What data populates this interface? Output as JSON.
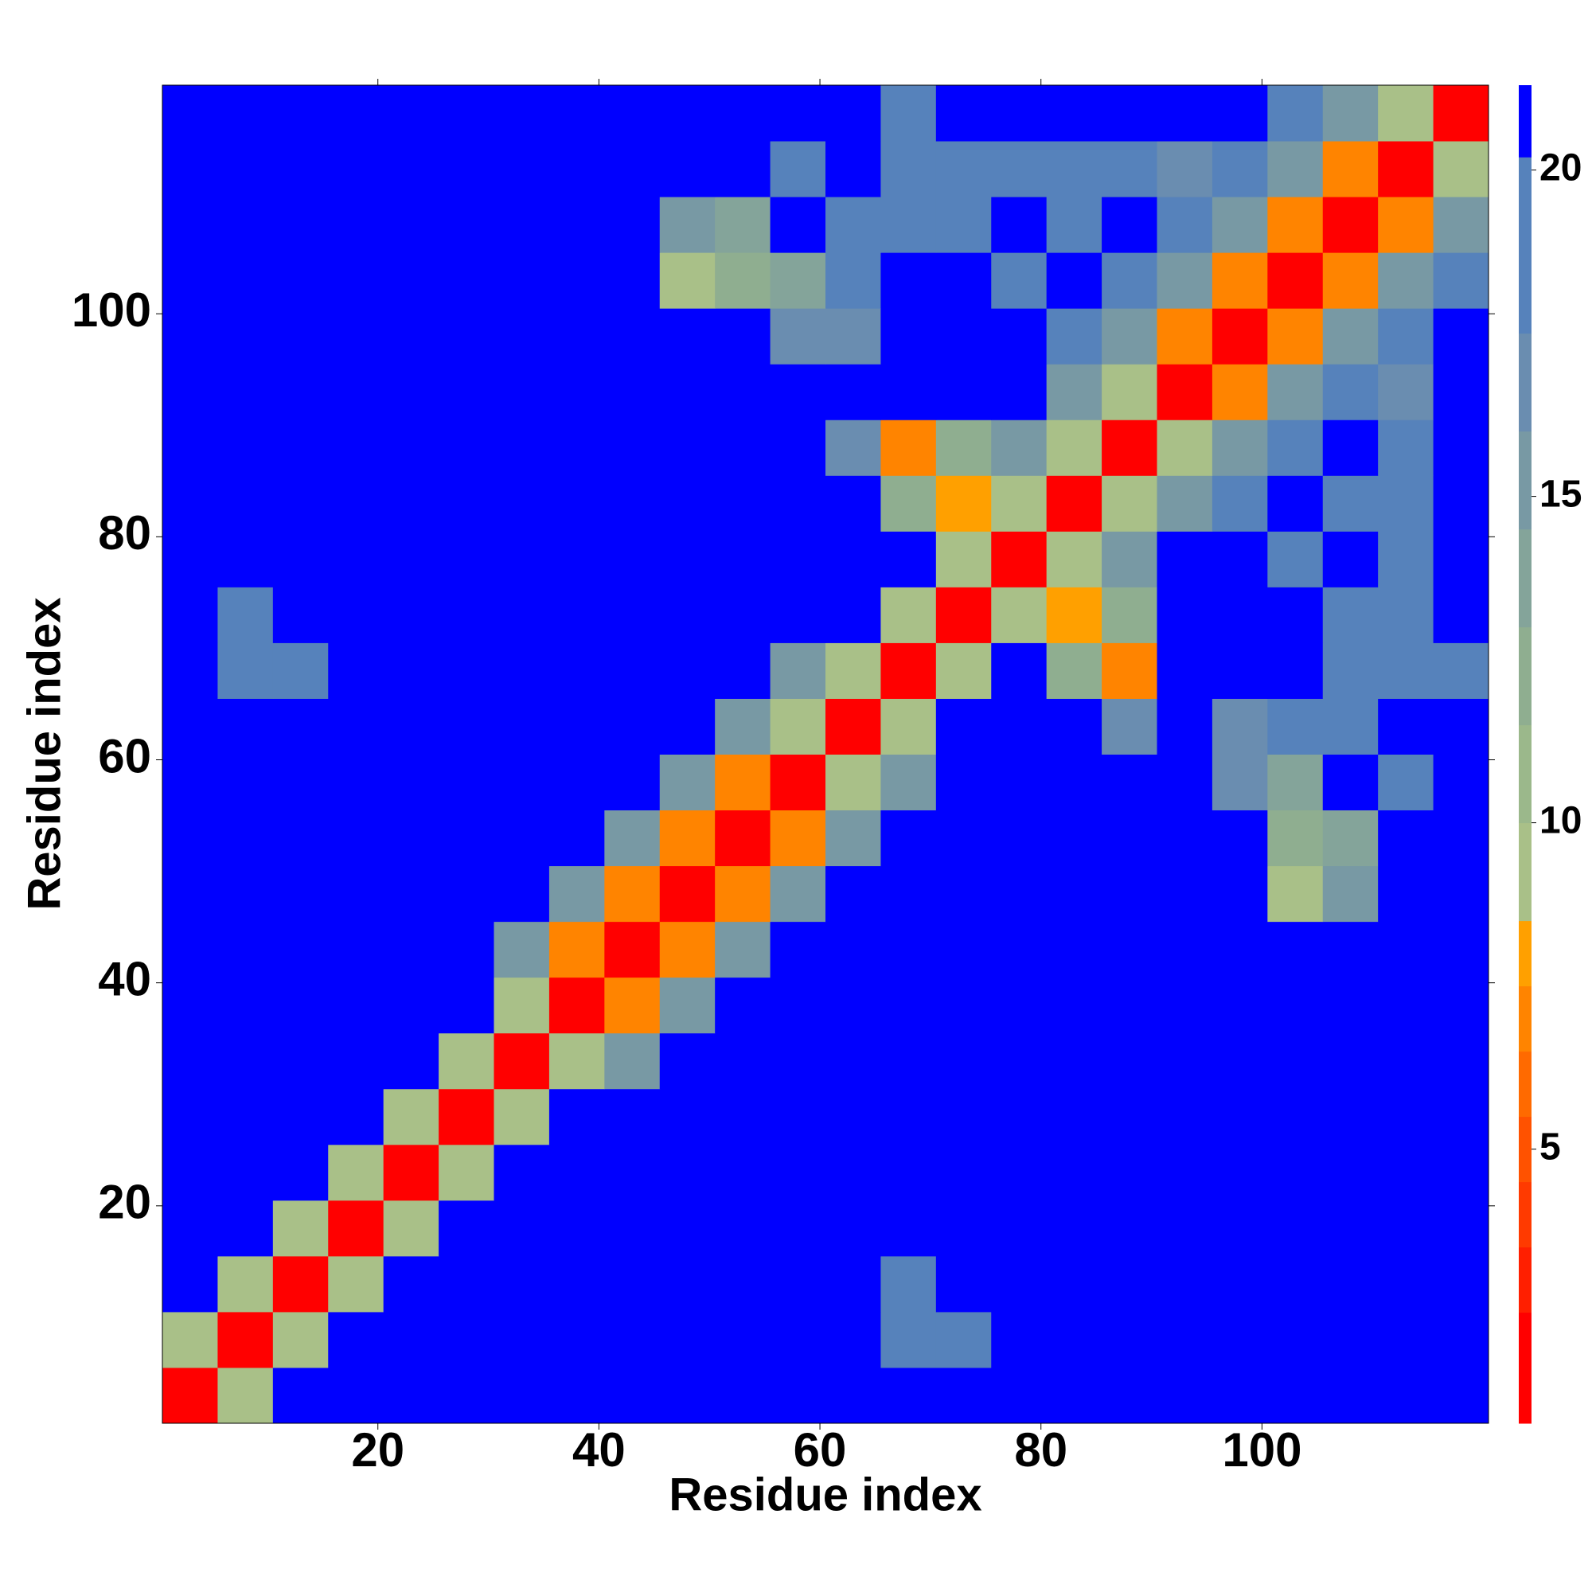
{
  "chart_data": {
    "type": "heatmap",
    "xlabel": "Residue index",
    "ylabel": "Residue index",
    "xbins": [
      0.5,
      5.5,
      10.5,
      15.5,
      20.5,
      25.5,
      30.5,
      35.5,
      40.5,
      45.5,
      50.5,
      55.5,
      60.5,
      65.5,
      70.5,
      75.5,
      80.5,
      85.5,
      90.5,
      95.5,
      100.5,
      105.5,
      110.5,
      115.5,
      120.5
    ],
    "ybins": [
      0.5,
      5.5,
      10.5,
      15.5,
      20.5,
      25.5,
      30.5,
      35.5,
      40.5,
      45.5,
      50.5,
      55.5,
      60.5,
      65.5,
      70.5,
      75.5,
      80.5,
      85.5,
      90.5,
      95.5,
      100.5,
      105.5,
      110.5,
      115.5,
      120.5
    ],
    "xlim": [
      0.5,
      120.5
    ],
    "ylim": [
      0.5,
      120.5
    ],
    "xticks": [
      20,
      40,
      60,
      80,
      100
    ],
    "yticks": [
      20,
      40,
      60,
      80,
      100
    ],
    "z": [
      [
        2,
        10,
        22,
        22,
        22,
        22,
        22,
        22,
        22,
        22,
        22,
        22,
        22,
        22,
        22,
        22,
        22,
        22,
        22,
        22,
        22,
        22,
        22,
        22
      ],
      [
        10,
        2,
        10,
        22,
        22,
        22,
        22,
        22,
        22,
        22,
        22,
        22,
        22,
        18,
        18,
        22,
        22,
        22,
        22,
        22,
        22,
        22,
        22,
        22
      ],
      [
        22,
        10,
        2,
        10,
        22,
        22,
        22,
        22,
        22,
        22,
        22,
        22,
        22,
        19,
        22,
        22,
        22,
        22,
        22,
        22,
        22,
        22,
        22,
        22
      ],
      [
        22,
        22,
        10,
        2,
        10,
        22,
        22,
        22,
        22,
        22,
        22,
        22,
        22,
        22,
        22,
        22,
        22,
        22,
        22,
        22,
        22,
        22,
        22,
        22
      ],
      [
        22,
        22,
        22,
        10,
        2,
        10,
        22,
        22,
        22,
        22,
        22,
        22,
        22,
        22,
        22,
        22,
        22,
        22,
        22,
        22,
        22,
        22,
        22,
        22
      ],
      [
        22,
        22,
        22,
        22,
        10,
        2,
        10,
        22,
        22,
        22,
        22,
        22,
        22,
        22,
        22,
        22,
        22,
        22,
        22,
        22,
        22,
        22,
        22,
        22
      ],
      [
        22,
        22,
        22,
        22,
        22,
        10,
        2,
        10,
        16,
        22,
        22,
        22,
        22,
        22,
        22,
        22,
        22,
        22,
        22,
        22,
        22,
        22,
        22,
        22
      ],
      [
        22,
        22,
        22,
        22,
        22,
        22,
        10,
        2,
        7,
        16,
        22,
        22,
        22,
        22,
        22,
        22,
        22,
        22,
        22,
        22,
        22,
        22,
        22,
        22
      ],
      [
        22,
        22,
        22,
        22,
        22,
        22,
        16,
        7,
        2,
        7,
        16,
        22,
        22,
        22,
        22,
        22,
        22,
        22,
        22,
        22,
        22,
        22,
        22,
        22
      ],
      [
        22,
        22,
        22,
        22,
        22,
        22,
        22,
        16,
        7,
        2,
        7,
        16,
        22,
        22,
        22,
        22,
        22,
        22,
        22,
        22,
        10,
        16,
        22,
        22
      ],
      [
        22,
        22,
        22,
        22,
        22,
        22,
        22,
        22,
        16,
        7,
        2,
        7,
        16,
        22,
        22,
        22,
        22,
        22,
        22,
        22,
        12,
        14,
        22,
        22
      ],
      [
        22,
        22,
        22,
        22,
        22,
        22,
        22,
        22,
        22,
        16,
        7,
        2,
        10,
        16,
        22,
        22,
        22,
        22,
        22,
        17,
        14,
        22,
        18,
        22
      ],
      [
        22,
        22,
        22,
        22,
        22,
        22,
        22,
        22,
        22,
        22,
        16,
        10,
        2,
        10,
        22,
        22,
        22,
        17,
        22,
        17,
        18,
        18,
        22,
        22
      ],
      [
        22,
        18,
        19,
        22,
        22,
        22,
        22,
        22,
        22,
        22,
        22,
        16,
        10,
        2,
        10,
        22,
        12,
        7,
        22,
        22,
        22,
        18,
        18,
        18
      ],
      [
        22,
        18,
        22,
        22,
        22,
        22,
        22,
        22,
        22,
        22,
        22,
        22,
        22,
        10,
        2,
        10,
        8,
        12,
        22,
        22,
        22,
        18,
        18,
        22
      ],
      [
        22,
        22,
        22,
        22,
        22,
        22,
        22,
        22,
        22,
        22,
        22,
        22,
        22,
        22,
        10,
        2,
        10,
        16,
        22,
        22,
        18,
        22,
        18,
        22
      ],
      [
        22,
        22,
        22,
        22,
        22,
        22,
        22,
        22,
        22,
        22,
        22,
        22,
        22,
        12,
        8,
        10,
        2,
        10,
        16,
        18,
        22,
        18,
        18,
        22
      ],
      [
        22,
        22,
        22,
        22,
        22,
        22,
        22,
        22,
        22,
        22,
        22,
        22,
        17,
        7,
        12,
        16,
        10,
        2,
        10,
        16,
        18,
        22,
        18,
        22
      ],
      [
        22,
        22,
        22,
        22,
        22,
        22,
        22,
        22,
        22,
        22,
        22,
        22,
        22,
        22,
        22,
        22,
        16,
        10,
        2,
        7,
        16,
        18,
        17,
        22
      ],
      [
        22,
        22,
        22,
        22,
        22,
        22,
        22,
        22,
        22,
        22,
        22,
        17,
        17,
        22,
        22,
        22,
        18,
        16,
        7,
        2,
        7,
        16,
        18,
        22
      ],
      [
        22,
        22,
        22,
        22,
        22,
        22,
        22,
        22,
        22,
        10,
        12,
        14,
        18,
        22,
        22,
        18,
        22,
        18,
        16,
        7,
        2,
        7,
        16,
        18
      ],
      [
        22,
        22,
        22,
        22,
        22,
        22,
        22,
        22,
        22,
        16,
        14,
        22,
        18,
        18,
        18,
        22,
        18,
        22,
        18,
        16,
        7,
        2,
        7,
        16
      ],
      [
        22,
        22,
        22,
        22,
        22,
        22,
        22,
        22,
        22,
        22,
        22,
        18,
        22,
        18,
        18,
        18,
        18,
        18,
        17,
        18,
        16,
        7,
        2,
        10
      ],
      [
        22,
        22,
        22,
        22,
        22,
        22,
        22,
        22,
        22,
        22,
        22,
        22,
        22,
        18,
        22,
        22,
        22,
        22,
        22,
        22,
        18,
        16,
        10,
        2
      ]
    ],
    "zlim": [
      0.8,
      21.3
    ],
    "zticks": [
      5,
      10,
      15,
      20
    ],
    "levels": [
      0.8,
      2.5,
      3.5,
      4.5,
      5.5,
      6.5,
      7.5,
      8.5,
      10,
      11.5,
      13,
      14.5,
      16,
      17.5,
      20.2,
      22.5
    ],
    "colors": [
      "#ff0000",
      "#ff1f00",
      "#ff3a00",
      "#ff5200",
      "#ff6a00",
      "#ff8400",
      "#ffa000",
      "#a9c088",
      "#9bb88b",
      "#8fae90",
      "#84a49a",
      "#7899a4",
      "#6a8db0",
      "#5682bb",
      "#0000ff"
    ]
  }
}
